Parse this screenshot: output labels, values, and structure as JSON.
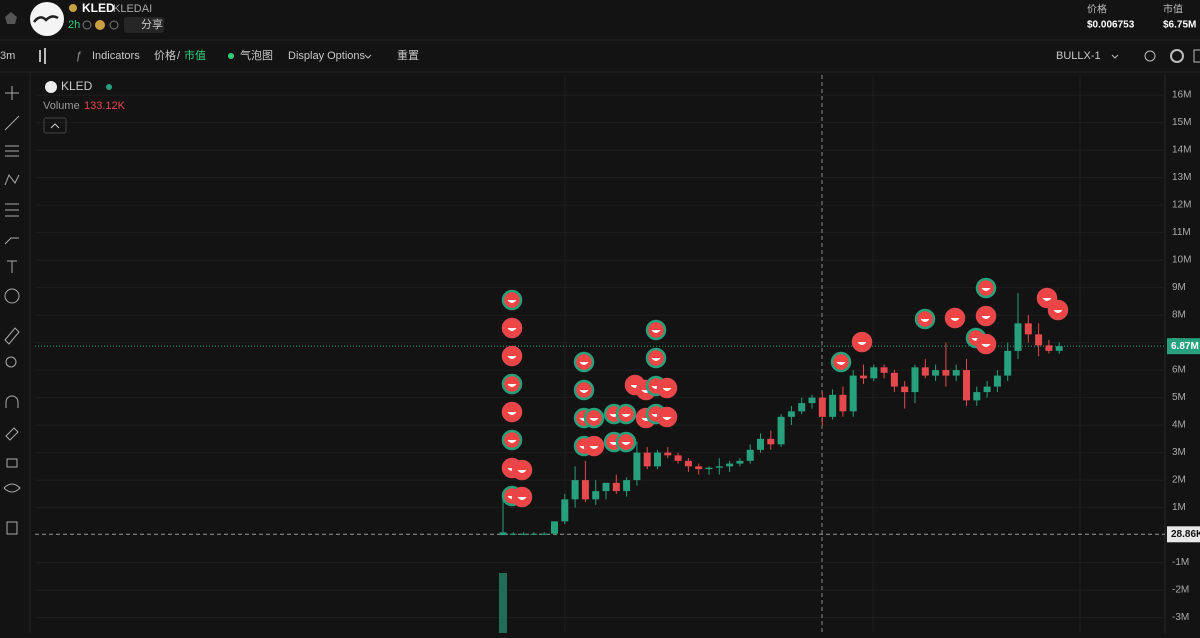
{
  "header": {
    "symbol": "KLED",
    "name": "KLEDAI",
    "age": "2h",
    "share": "分享",
    "price_label": "价格",
    "price": "$0.006753",
    "mcap_label": "市值",
    "mcap": "$6.75M"
  },
  "toolbar": {
    "interval": "3m",
    "indicators": "Indicators",
    "price": "价格",
    "separator": "/",
    "mcap": "市值",
    "bubble": "气泡图",
    "display": "Display Options",
    "reset": "重置",
    "bullx": "BULLX-1"
  },
  "chart_data": {
    "type": "candlestick",
    "symbol": "KLED",
    "volume_label": "Volume",
    "volume_value": "133.12K",
    "ylim": [
      -3.56,
      16.73
    ],
    "yticks": [
      {
        "value": 16,
        "label": "16M"
      },
      {
        "value": 15,
        "label": "15M"
      },
      {
        "value": 14,
        "label": "14M"
      },
      {
        "value": 13,
        "label": "13M"
      },
      {
        "value": 12,
        "label": "12M"
      },
      {
        "value": 11,
        "label": "11M"
      },
      {
        "value": 10,
        "label": "10M"
      },
      {
        "value": 9,
        "label": "9M"
      },
      {
        "value": 8,
        "label": "8M"
      },
      {
        "value": 7,
        "label": "7M"
      },
      {
        "value": 6,
        "label": "6M"
      },
      {
        "value": 5,
        "label": "5M"
      },
      {
        "value": 4,
        "label": "4M"
      },
      {
        "value": 3,
        "label": "3M"
      },
      {
        "value": 2,
        "label": "2M"
      },
      {
        "value": 1,
        "label": "1M"
      },
      {
        "value": -1,
        "label": "-1M"
      },
      {
        "value": -2,
        "label": "-2M"
      },
      {
        "value": -3,
        "label": "-3M"
      }
    ],
    "last_price": {
      "value": 6.87,
      "label": "6.87M"
    },
    "current_line": {
      "value": 0.02886,
      "label": "28.86K"
    },
    "up_color": "#26a17b",
    "down_color": "#e5484d",
    "candles": {
      "open": [
        0,
        0.05,
        0.05,
        0.05,
        0.05,
        0.05,
        0.5,
        1.3,
        2,
        1.3,
        1.6,
        1.9,
        1.6,
        2,
        3,
        2.5,
        3,
        2.9,
        2.7,
        2.5,
        2.4,
        2.45,
        2.5,
        2.6,
        2.7,
        3.1,
        3.5,
        3.3,
        4.3,
        4.5,
        4.8,
        5,
        4.3,
        5.1,
        4.5,
        5.8,
        5.7,
        6.1,
        5.9,
        5.4,
        5.2,
        6.1,
        5.8,
        6,
        5.8,
        6,
        4.9,
        5.2,
        5.4,
        5.8,
        6.7,
        7.7,
        7.3,
        6.9,
        6.7
      ],
      "high": [
        1.5,
        0.1,
        0.1,
        0.1,
        0.1,
        0.5,
        1.5,
        2.5,
        2.7,
        2,
        1.9,
        2.2,
        2.1,
        3.4,
        3.2,
        3.1,
        3.2,
        3,
        2.8,
        2.6,
        2.5,
        2.8,
        2.7,
        2.8,
        3.3,
        3.7,
        3.8,
        4.4,
        4.7,
        5,
        5.1,
        5.2,
        5.3,
        5.4,
        6,
        6.2,
        6.2,
        6.2,
        6,
        5.6,
        6.2,
        6.4,
        6.2,
        7,
        6.2,
        6.4,
        5.4,
        5.6,
        6,
        7,
        8.8,
        8,
        7.7,
        7.1,
        7
      ],
      "low": [
        0,
        0,
        0,
        0,
        0,
        0,
        0.4,
        1,
        1.2,
        1.1,
        1.3,
        1.5,
        1.4,
        1.8,
        2.4,
        2.4,
        2.8,
        2.6,
        2.3,
        2.2,
        2.2,
        2.2,
        2.3,
        2.5,
        2.6,
        3,
        3.1,
        3.2,
        4,
        4.4,
        4.6,
        4,
        4.2,
        4.3,
        4.3,
        5.5,
        5.6,
        5.7,
        5.2,
        4.6,
        4.8,
        5.7,
        5.6,
        5.4,
        5.6,
        4.7,
        4.7,
        5,
        5.2,
        5.6,
        6.4,
        7,
        6.5,
        6.6,
        6.6
      ],
      "close": [
        0.1,
        0.05,
        0.05,
        0.05,
        0.05,
        0.5,
        1.3,
        2,
        1.3,
        1.6,
        1.9,
        1.6,
        2,
        3,
        2.5,
        3,
        2.9,
        2.7,
        2.5,
        2.4,
        2.45,
        2.5,
        2.6,
        2.7,
        3.1,
        3.5,
        3.3,
        4.3,
        4.5,
        4.8,
        5,
        4.3,
        5.1,
        4.5,
        5.8,
        5.7,
        6.1,
        5.9,
        5.4,
        5.2,
        6.1,
        5.8,
        6,
        5.8,
        6,
        4.9,
        5.2,
        5.4,
        5.8,
        6.7,
        7.7,
        7.3,
        6.9,
        6.7,
        6.87
      ]
    }
  }
}
